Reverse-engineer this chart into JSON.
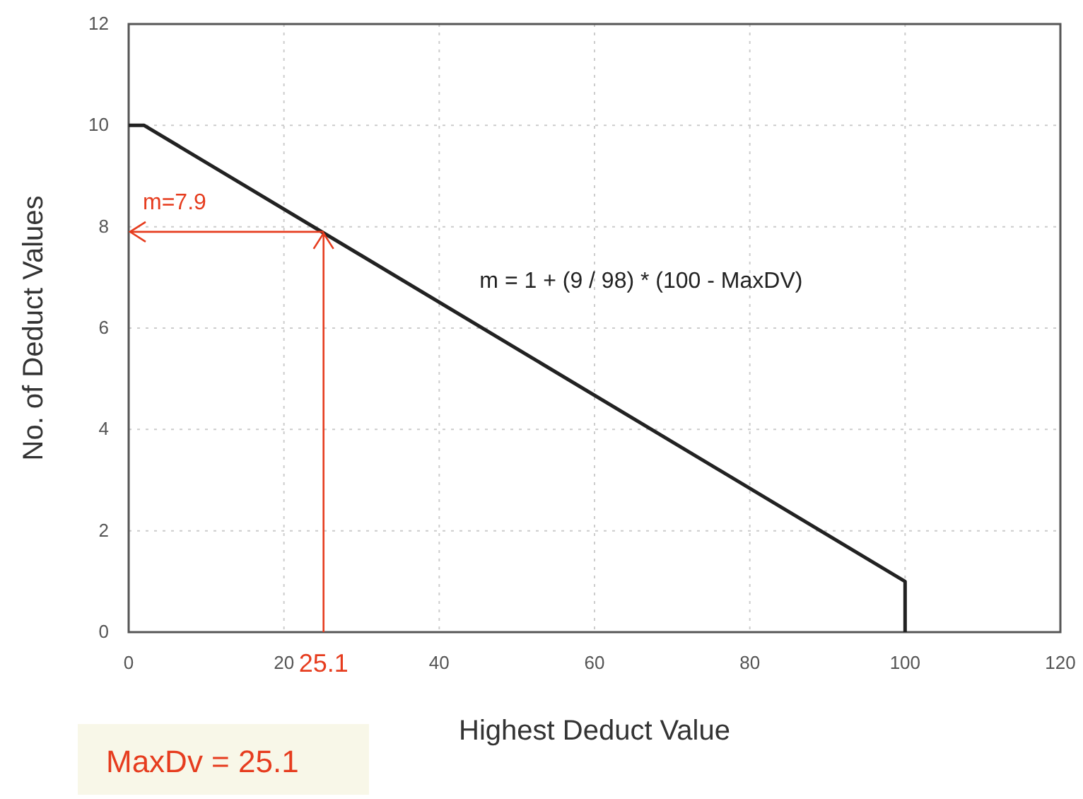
{
  "chart_data": {
    "type": "line",
    "xlabel": "Highest Deduct Value",
    "ylabel": "No. of Deduct Values",
    "x": [
      0,
      2,
      100,
      100
    ],
    "series": [
      {
        "color": "#222222",
        "values": [
          10,
          10,
          1,
          0
        ]
      }
    ],
    "xlim": [
      0,
      120
    ],
    "xticks": [
      0,
      20,
      40,
      60,
      80,
      100,
      120
    ],
    "ylim": [
      0,
      12
    ],
    "yticks": [
      0,
      2,
      4,
      6,
      8,
      10,
      12
    ],
    "grid": true,
    "marker": "none",
    "line_style": "solid",
    "ref_lines": [
      {
        "axis": "y",
        "value": 7.9,
        "label": "m=7.9",
        "color": "#e63c1e"
      },
      {
        "axis": "x",
        "value": 25.1,
        "label": "25.1",
        "color": "#e63c1e"
      }
    ],
    "annotations": [
      "m = 1 + (9 / 98) * (100 - MaxDV)",
      "MaxDv = 25.1"
    ]
  }
}
